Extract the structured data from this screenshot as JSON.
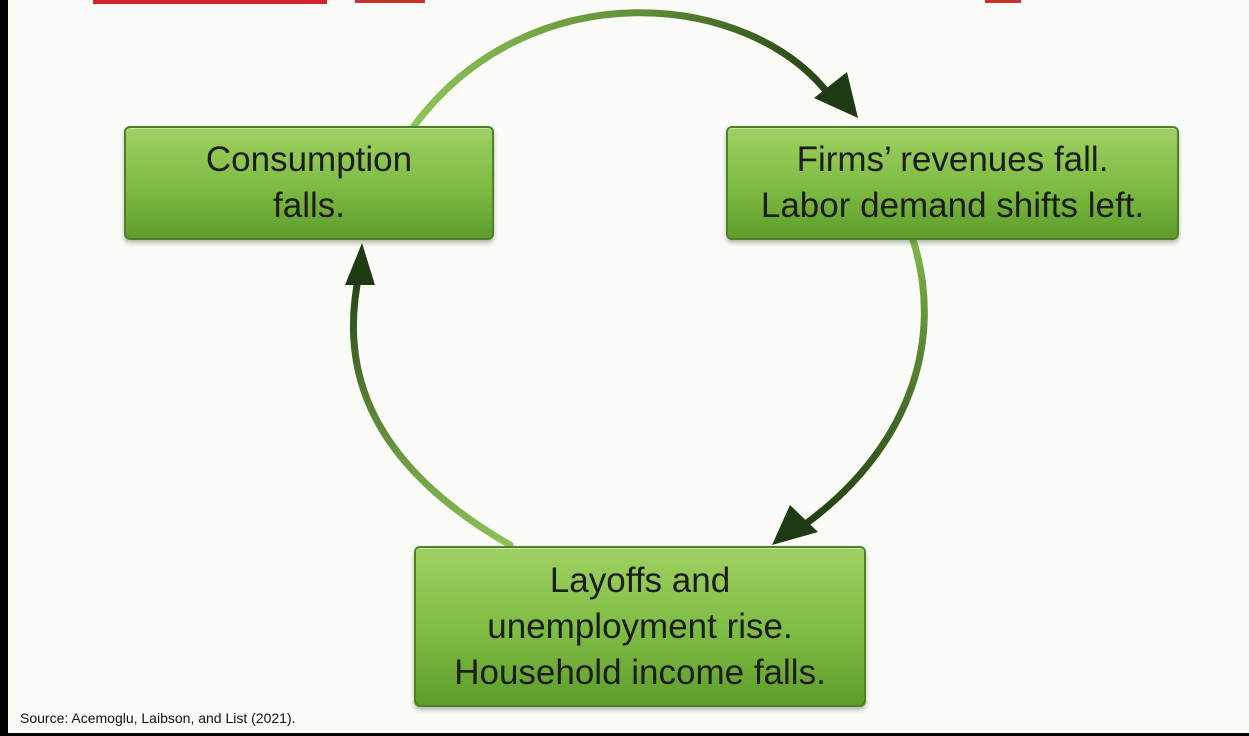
{
  "colors": {
    "accent_red": "#d4242c",
    "box_light_green": "#9fd162",
    "box_dark_green": "#5f9d2c",
    "arrow_light": "#8fc257",
    "arrow_dark": "#1e3a12"
  },
  "boxes": {
    "consumption": {
      "lines": [
        "Consumption",
        "falls."
      ]
    },
    "firms": {
      "lines": [
        "Firms’ revenues fall.",
        "Labor demand shifts left."
      ]
    },
    "layoffs": {
      "lines": [
        "Layoffs and",
        "unemployment rise.",
        "Household income falls."
      ]
    }
  },
  "source": "Source: Acemoglu, Laibson, and List (2021)."
}
